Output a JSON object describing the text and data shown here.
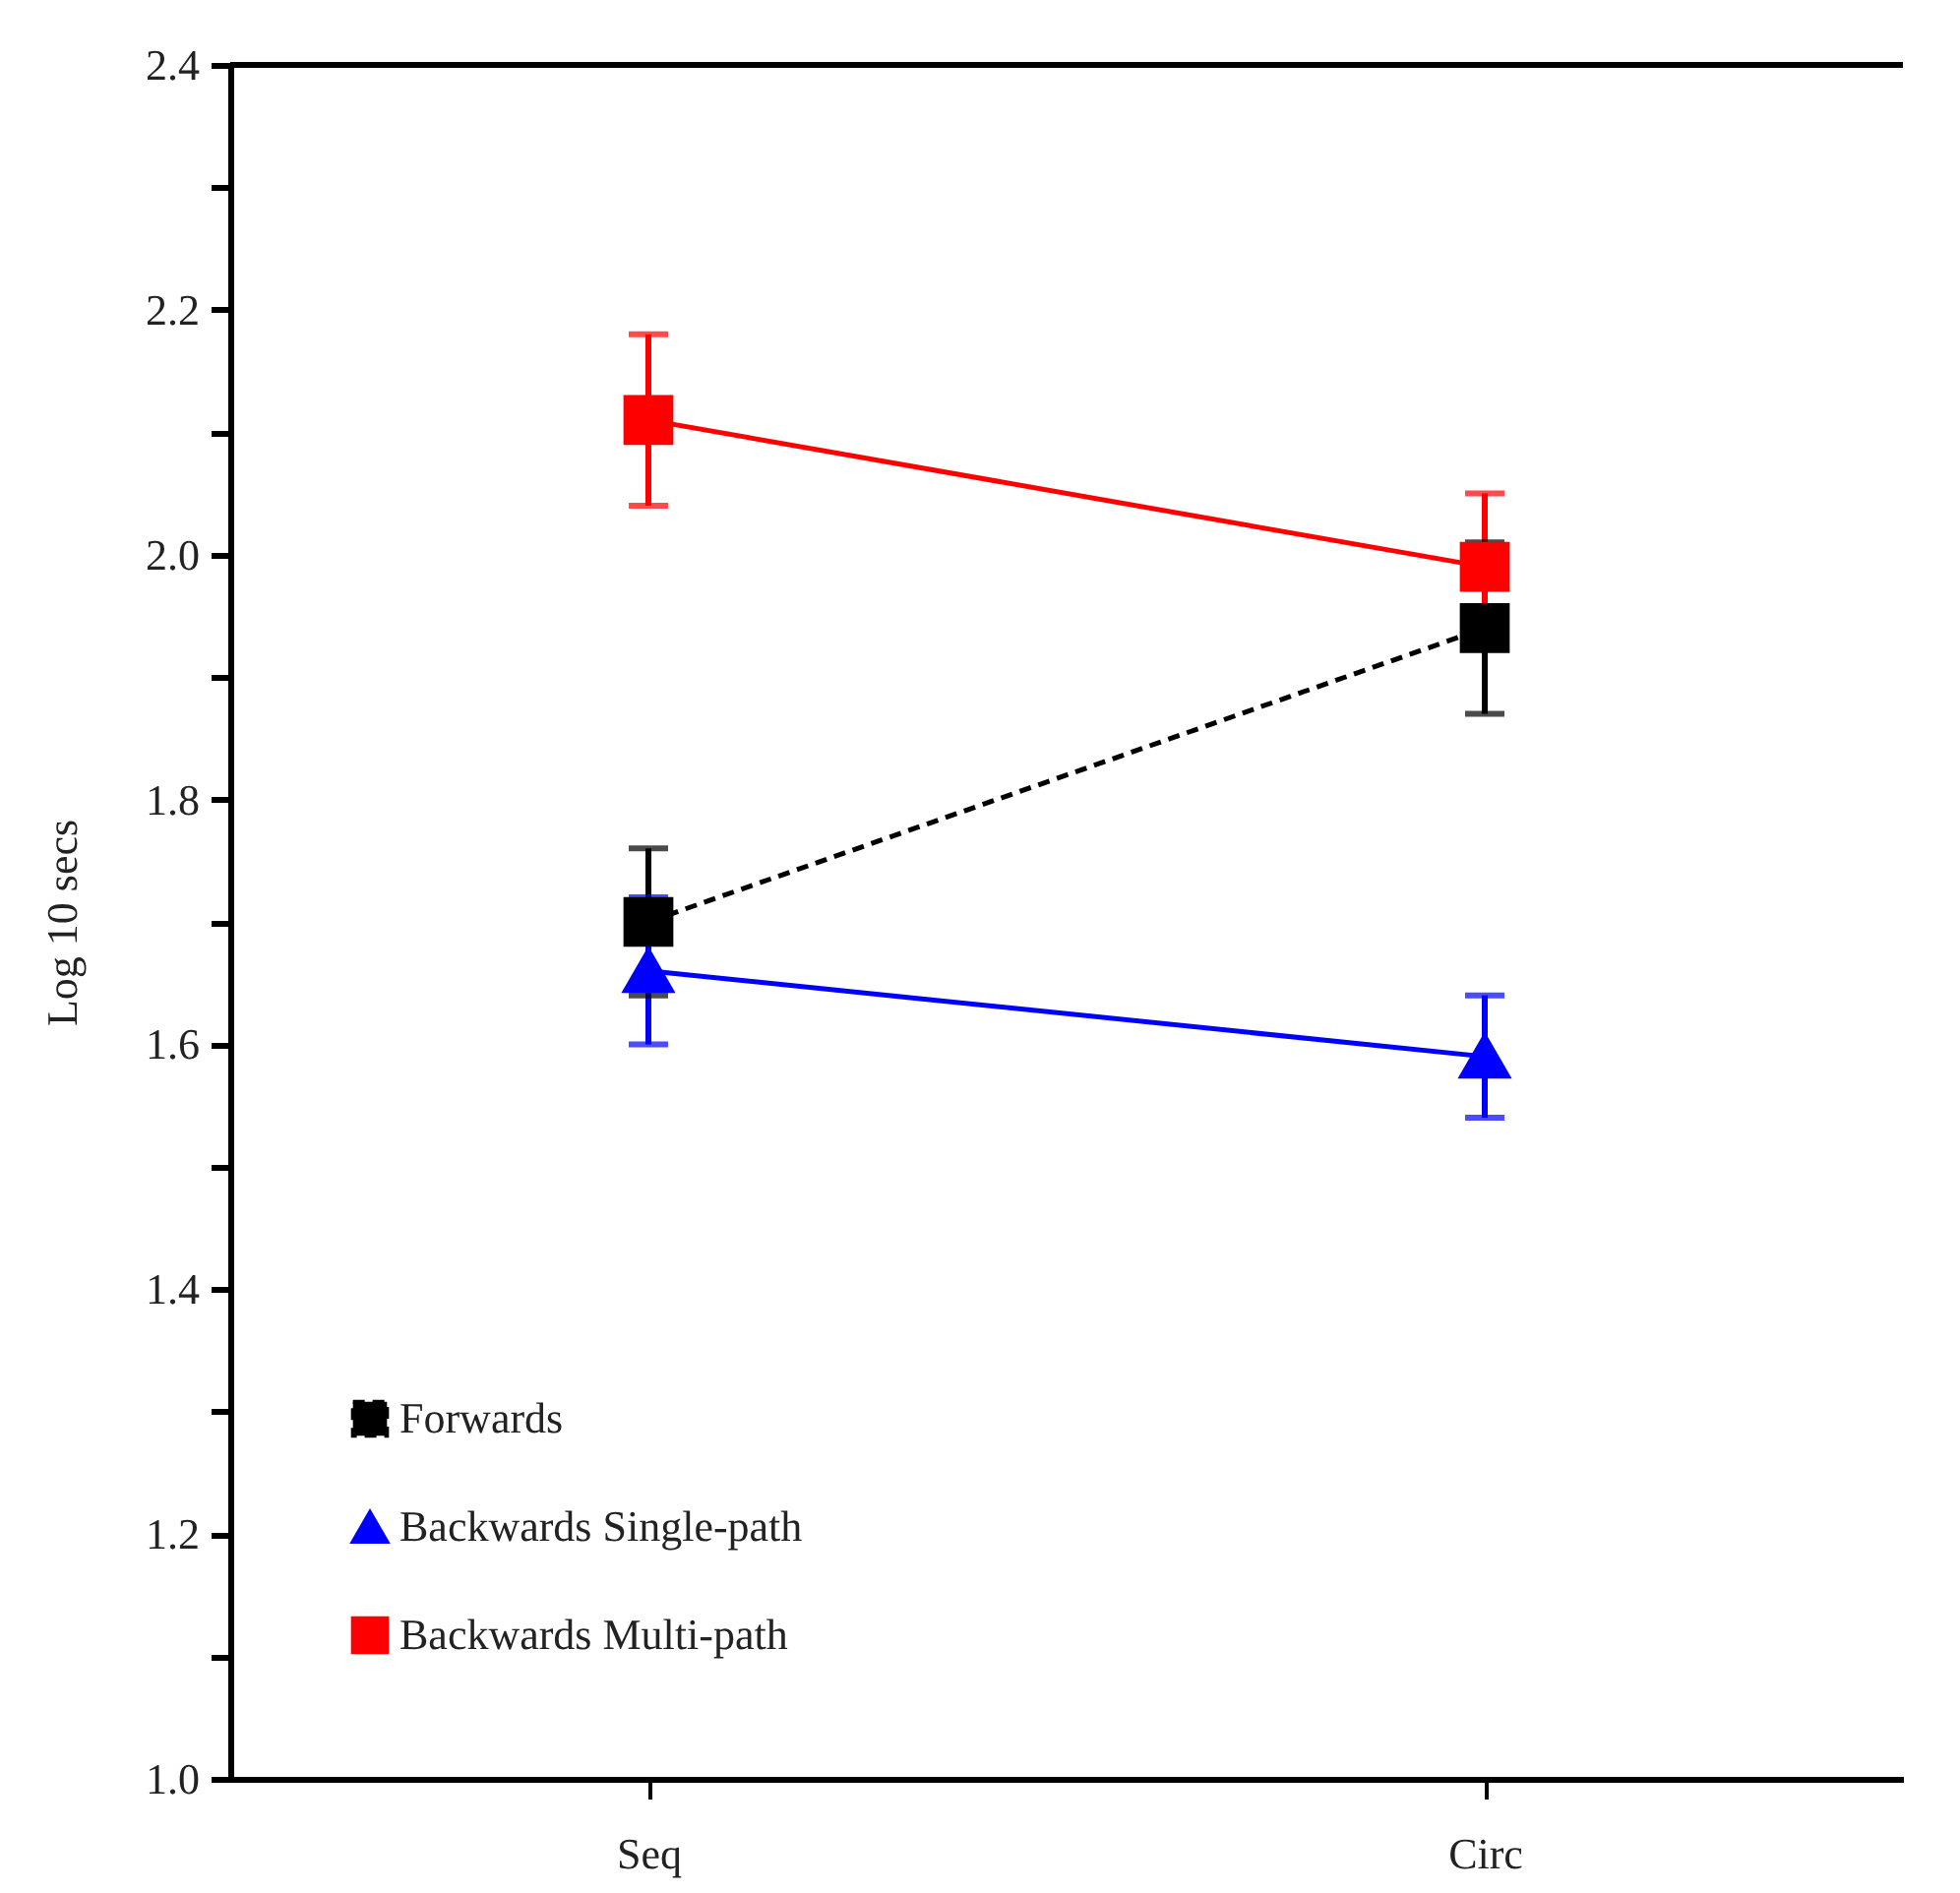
{
  "chart_data": {
    "type": "line",
    "ylabel": "Log 10 secs",
    "categories": [
      "Seq",
      "Circ"
    ],
    "ylim": [
      1.0,
      2.4
    ],
    "yticks": [
      {
        "value": 1,
        "label": "1.0"
      },
      {
        "value": 1.1,
        "label": null
      },
      {
        "value": 1.2,
        "label": "1.2"
      },
      {
        "value": 1.3,
        "label": null
      },
      {
        "value": 1.4,
        "label": "1.4"
      },
      {
        "value": 1.5,
        "label": null
      },
      {
        "value": 1.6,
        "label": "1.6"
      },
      {
        "value": 1.7,
        "label": null
      },
      {
        "value": 1.8,
        "label": "1.8"
      },
      {
        "value": 1.9,
        "label": null
      },
      {
        "value": 2,
        "label": "2.0"
      },
      {
        "value": 2.1,
        "label": null
      },
      {
        "value": 2.2,
        "label": "2.2"
      },
      {
        "value": 2.3,
        "label": null
      },
      {
        "value": 2.4,
        "label": "2.4"
      }
    ],
    "series": [
      {
        "name": "Forwards",
        "color": "#000000",
        "values": [
          1.7,
          1.94
        ],
        "errors": [
          0.06,
          0.07
        ],
        "marker": "square",
        "line_style": "dashed"
      },
      {
        "name": "Backwards Single-path",
        "color": "#0000ff",
        "values": [
          1.66,
          1.59
        ],
        "errors": [
          0.06,
          0.05
        ],
        "marker": "triangle",
        "line_style": "solid"
      },
      {
        "name": "Backwards Multi-path",
        "color": "#ff0000",
        "values": [
          2.11,
          1.99
        ],
        "errors": [
          0.07,
          0.06
        ],
        "marker": "square",
        "line_style": "solid"
      }
    ],
    "grid": false,
    "legend": "bottom left"
  }
}
